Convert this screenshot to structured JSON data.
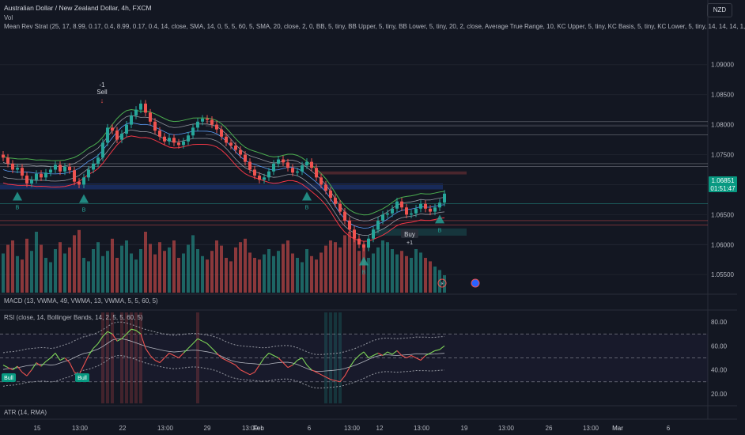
{
  "header": {
    "symbol_title": "Australian Dollar / New Zealand Dollar, 4h, FXCM",
    "vol_label": "Vol",
    "strategy_legend": "Mean Rev Strat (25, 17, 8.99, 0.17, 0.4, 8.99, 0.17, 0.4, 14, close, SMA, 14, 0, 5, 5, 60, 5, SMA, 20, close, 2, 0, BB, 5, tiny, BB Upper, 5, tiny, BB Lower, 5, tiny, 20, 2, close, Average True Range, 10, KC Upper, 5, tiny, KC Basis, 5, tiny, KC Lower, 5, tiny, 14, 14, 14, 1,",
    "currency_badge": "NZD"
  },
  "panes": {
    "macd_legend": "MACD (13, VWMA, 49, VWMA, 13, VWMA, 5, 5, 60, 5)",
    "rsi_legend": "RSI (close, 14, Bollinger Bands, 14, 2, 5, 5, 60, 5)",
    "atr_legend": "ATR (14, RMA)"
  },
  "colors": {
    "background": "#131722",
    "up": "#26a69a",
    "down": "#ef5350",
    "bb_upper": "#4caf50",
    "bb_lower": "#f23645",
    "kc_basis": "#5b9cf6",
    "rsi_line": "#7fd658",
    "rsi_bands": "#9598a1",
    "price_label_bg": "#089981"
  },
  "chart_data": {
    "type": "candlestick",
    "price_axis": {
      "ticks": [
        "1.09000",
        "1.08500",
        "1.08000",
        "1.07500",
        "1.07000",
        "1.06500",
        "1.06000",
        "1.05500"
      ],
      "range": [
        1.052,
        1.0955
      ]
    },
    "current_price": {
      "value": "1.06851",
      "countdown": "01:51:47"
    },
    "rsi_axis": {
      "ticks": [
        "80.00",
        "60.00",
        "40.00",
        "20.00"
      ],
      "range": [
        12,
        88
      ],
      "upper_band": 70,
      "mid": 50,
      "lower_band": 30
    },
    "x_axis": {
      "ticks": [
        "15",
        "13:00",
        "22",
        "13:00",
        "29",
        "13:00",
        "Feb",
        "6",
        "13:00",
        "12",
        "13:00",
        "19",
        "13:00",
        "26",
        "13:00",
        "Mar",
        "6"
      ]
    },
    "closes": [
      1.0745,
      1.0735,
      1.0725,
      1.0728,
      1.0715,
      1.0702,
      1.0708,
      1.0718,
      1.0712,
      1.072,
      1.0725,
      1.0733,
      1.0722,
      1.073,
      1.0724,
      1.0705,
      1.07,
      1.0712,
      1.0725,
      1.0735,
      1.0745,
      1.077,
      1.0795,
      1.079,
      1.0775,
      1.0785,
      1.08,
      1.0815,
      1.0825,
      1.0835,
      1.082,
      1.0805,
      1.079,
      1.078,
      1.0772,
      1.0778,
      1.077,
      1.0766,
      1.0772,
      1.0782,
      1.0795,
      1.0805,
      1.081,
      1.0808,
      1.08,
      1.0792,
      1.078,
      1.077,
      1.0765,
      1.0758,
      1.075,
      1.0738,
      1.0725,
      1.0715,
      1.0708,
      1.0712,
      1.0722,
      1.0735,
      1.0742,
      1.0737,
      1.0728,
      1.072,
      1.0722,
      1.0732,
      1.0738,
      1.0728,
      1.0712,
      1.07,
      1.069,
      1.0678,
      1.0668,
      1.0655,
      1.064,
      1.0625,
      1.061,
      1.06,
      1.0595,
      1.061,
      1.0625,
      1.064,
      1.065,
      1.0652,
      1.066,
      1.0672,
      1.0662,
      1.065,
      1.0652,
      1.066,
      1.0668,
      1.066,
      1.0655,
      1.0662,
      1.067,
      1.0685
    ],
    "volumes": [
      45,
      55,
      60,
      42,
      38,
      62,
      48,
      70,
      55,
      40,
      35,
      50,
      58,
      45,
      52,
      66,
      72,
      40,
      36,
      50,
      58,
      42,
      48,
      62,
      40,
      54,
      60,
      45,
      38,
      50,
      70,
      56,
      44,
      58,
      48,
      52,
      60,
      40,
      45,
      55,
      66,
      50,
      42,
      38,
      48,
      60,
      54,
      40,
      36,
      52,
      58,
      62,
      46,
      40,
      38,
      44,
      50,
      42,
      48,
      56,
      60,
      45,
      40,
      35,
      50,
      42,
      38,
      46,
      54,
      60,
      58,
      52,
      66,
      70,
      62,
      48,
      56,
      40,
      45,
      52,
      60,
      58,
      50,
      44,
      48,
      42,
      40,
      50,
      46,
      40,
      36,
      30,
      26,
      20
    ],
    "rsi": [
      44,
      42,
      40,
      43,
      38,
      35,
      40,
      46,
      43,
      47,
      50,
      54,
      48,
      50,
      46,
      38,
      36,
      44,
      52,
      58,
      62,
      68,
      72,
      70,
      64,
      66,
      70,
      74,
      73,
      70,
      58,
      52,
      48,
      46,
      50,
      54,
      52,
      50,
      54,
      58,
      62,
      66,
      64,
      62,
      58,
      54,
      50,
      48,
      46,
      44,
      40,
      38,
      36,
      38,
      44,
      50,
      54,
      52,
      50,
      46,
      42,
      44,
      48,
      50,
      44,
      40,
      38,
      36,
      34,
      32,
      31,
      30,
      35,
      42,
      48,
      52,
      55,
      50,
      52,
      54,
      52,
      55,
      53,
      56,
      52,
      50,
      52,
      50,
      48,
      52,
      54,
      56,
      57,
      60
    ],
    "series_markers": {
      "sell": {
        "text": "Sell",
        "count": "-1"
      },
      "buy": {
        "text": "Buy",
        "count": "+1"
      },
      "b_label": "B",
      "bull_label": "Bull"
    }
  }
}
